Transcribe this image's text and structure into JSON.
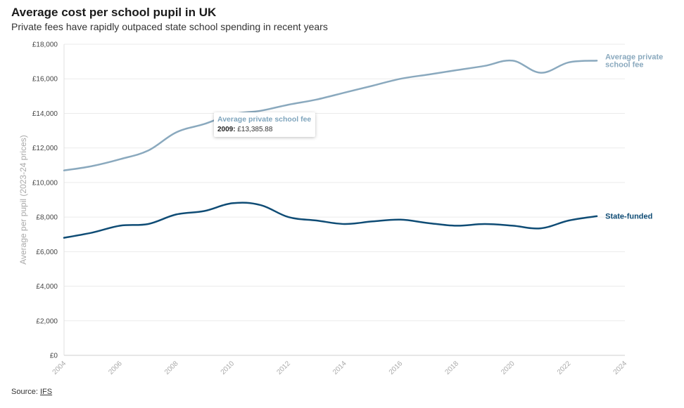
{
  "chart_data": {
    "type": "line",
    "title": "Average cost per school pupil in UK",
    "subtitle": "Private fees have rapidly outpaced state school spending in recent years",
    "ylabel": "Average per pupil (2023-24 prices)",
    "xlabel": "",
    "xlim": [
      2004,
      2024
    ],
    "ylim": [
      0,
      18000
    ],
    "x_ticks": [
      "2004",
      "2006",
      "2008",
      "2010",
      "2012",
      "2014",
      "2016",
      "2018",
      "2020",
      "2022",
      "2024"
    ],
    "y_ticks": [
      "£0",
      "£2,000",
      "£4,000",
      "£6,000",
      "£8,000",
      "£10,000",
      "£12,000",
      "£14,000",
      "£16,000",
      "£18,000"
    ],
    "grid": true,
    "series": [
      {
        "name": "Average private school fee",
        "label_line1": "Average private",
        "label_line2": "school fee",
        "color": "#8aa9be",
        "x": [
          2004,
          2005,
          2006,
          2007,
          2008,
          2009,
          2010,
          2011,
          2012,
          2013,
          2014,
          2015,
          2016,
          2017,
          2018,
          2019,
          2020,
          2021,
          2022,
          2023
        ],
        "values": [
          10700,
          10950,
          11350,
          11850,
          12900,
          13385.88,
          13950,
          14150,
          14500,
          14800,
          15200,
          15600,
          16000,
          16250,
          16500,
          16750,
          17050,
          16350,
          16950,
          17050
        ]
      },
      {
        "name": "State-funded",
        "label_line1": "State-funded",
        "label_line2": "",
        "color": "#0f4c75",
        "x": [
          2004,
          2005,
          2006,
          2007,
          2008,
          2009,
          2010,
          2011,
          2012,
          2013,
          2014,
          2015,
          2016,
          2017,
          2018,
          2019,
          2020,
          2021,
          2022,
          2023
        ],
        "values": [
          6800,
          7100,
          7500,
          7600,
          8150,
          8350,
          8800,
          8700,
          8000,
          7800,
          7600,
          7750,
          7850,
          7650,
          7500,
          7600,
          7500,
          7350,
          7800,
          8050
        ]
      }
    ]
  },
  "tooltip": {
    "series_name": "Average private school fee",
    "year": "2009:",
    "value": "£13,385.88"
  },
  "source": {
    "prefix": "Source:",
    "link_text": "IFS"
  }
}
